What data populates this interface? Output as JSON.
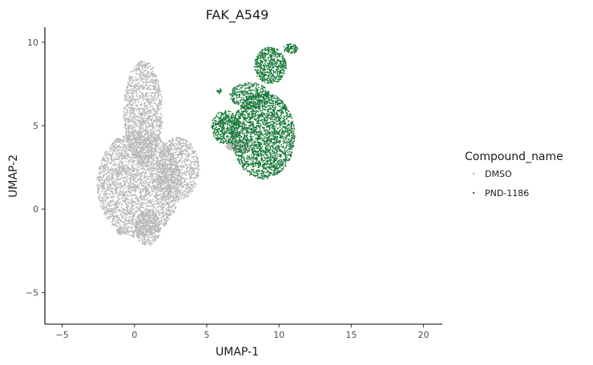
{
  "chart_data": {
    "type": "scatter",
    "title": "FAK_A549",
    "xlabel": "UMAP-1",
    "ylabel": "UMAP-2",
    "xlim": [
      -6.2,
      21.3
    ],
    "ylim": [
      -6.9,
      10.9
    ],
    "xticks": [
      -5,
      0,
      5,
      10,
      15,
      20
    ],
    "yticks": [
      -5,
      0,
      5,
      10
    ],
    "grid": false,
    "legend": {
      "title": "Compound_name",
      "position": "right",
      "entries": [
        "DMSO",
        "PND-1186"
      ]
    },
    "series": [
      {
        "name": "DMSO",
        "color": "#b8b8b8",
        "description_points": "dense cloud",
        "clusters": [
          {
            "cx": 0.6,
            "cy": 5.8,
            "rx": 1.35,
            "ry": 3.1,
            "n": 1400
          },
          {
            "cx": 0.3,
            "cy": 1.5,
            "rx": 2.9,
            "ry": 3.2,
            "n": 3200
          },
          {
            "cx": 3.0,
            "cy": 2.4,
            "rx": 1.5,
            "ry": 1.9,
            "n": 900
          },
          {
            "cx": 0.9,
            "cy": -1.1,
            "rx": 0.9,
            "ry": 1.1,
            "n": 400
          },
          {
            "cx": -1.0,
            "cy": -1.3,
            "rx": 0.2,
            "ry": 0.25,
            "n": 40
          },
          {
            "cx": 7.2,
            "cy": 3.75,
            "rx": 0.9,
            "ry": 0.32,
            "n": 260
          }
        ]
      },
      {
        "name": "PND-1186",
        "color": "#1a7a3a",
        "clusters": [
          {
            "cx": 8.9,
            "cy": 4.4,
            "rx": 2.2,
            "ry": 2.6,
            "n": 2200
          },
          {
            "cx": 6.3,
            "cy": 4.9,
            "rx": 1.0,
            "ry": 1.0,
            "n": 450
          },
          {
            "cx": 9.4,
            "cy": 8.6,
            "rx": 1.1,
            "ry": 1.1,
            "n": 550
          },
          {
            "cx": 10.8,
            "cy": 9.6,
            "rx": 0.5,
            "ry": 0.3,
            "n": 80
          },
          {
            "cx": 8.0,
            "cy": 6.8,
            "rx": 1.4,
            "ry": 0.8,
            "n": 350
          },
          {
            "cx": 5.9,
            "cy": 7.05,
            "rx": 0.2,
            "ry": 0.15,
            "n": 15
          }
        ]
      }
    ]
  }
}
